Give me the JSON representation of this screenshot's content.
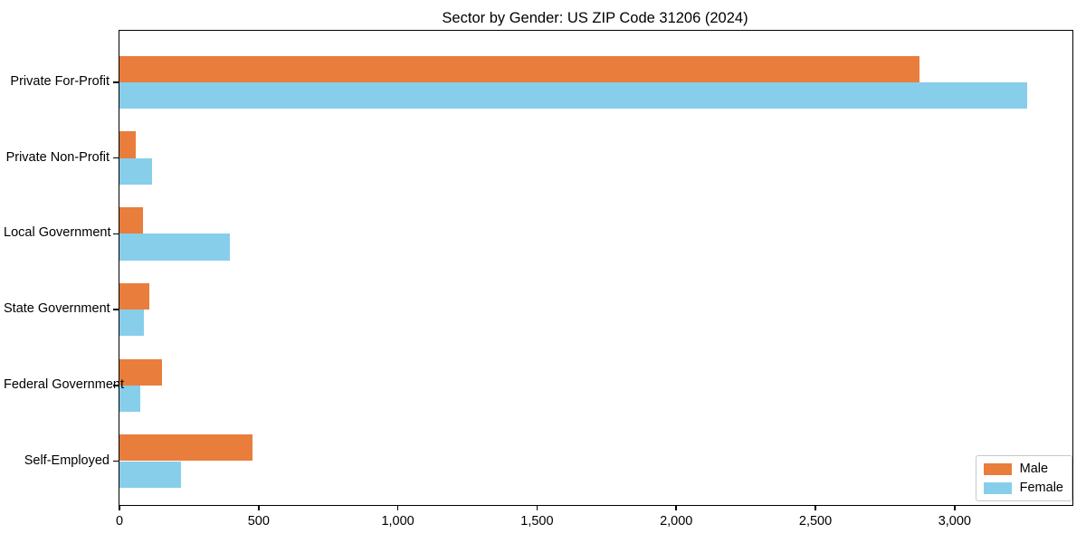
{
  "figure": {
    "background": "#ffffff"
  },
  "chart_data": {
    "type": "bar",
    "orientation": "horizontal",
    "title": "Sector by Gender: US ZIP Code 31206 (2024)",
    "xlabel": "",
    "ylabel": "",
    "categories": [
      "Private For-Profit",
      "Private Non-Profit",
      "Local Government",
      "State Government",
      "Federal Government",
      "Self-Employed"
    ],
    "series": [
      {
        "name": "Male",
        "color": "#E97D3C",
        "values": [
          2873,
          60,
          85,
          107,
          152,
          477
        ]
      },
      {
        "name": "Female",
        "color": "#87CEEB",
        "values": [
          3262,
          118,
          397,
          89,
          76,
          221
        ]
      }
    ],
    "xlim": [
      0,
      3423
    ],
    "xticks": [
      0,
      500,
      1000,
      1500,
      2000,
      2500,
      3000
    ],
    "xtick_labels": [
      "0",
      "500",
      "1,000",
      "1,500",
      "2,000",
      "2,500",
      "3,000"
    ],
    "grid": false,
    "legend": {
      "position": "lower right",
      "entries": [
        "Male",
        "Female"
      ]
    }
  }
}
